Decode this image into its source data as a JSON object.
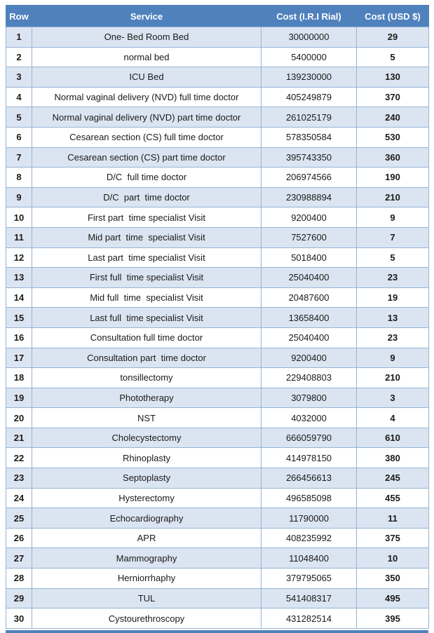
{
  "colors": {
    "header_bg": "#4F81BD",
    "header_text": "#FFFFFF",
    "row_alt_bg": "#DBE5F1",
    "border": "#95B3D7"
  },
  "table": {
    "headers": [
      "Row",
      "Service",
      "Cost (I.R.I Rial)",
      "Cost (USD $)"
    ],
    "column_keys": [
      "row-number",
      "service",
      "cost-rial",
      "cost-usd"
    ],
    "rows": [
      [
        "1",
        "One- Bed Room Bed",
        "30000000",
        "29"
      ],
      [
        "2",
        "normal bed",
        "5400000",
        "5"
      ],
      [
        "3",
        "ICU Bed",
        "139230000",
        "130"
      ],
      [
        "4",
        "Normal vaginal delivery (NVD) full time doctor",
        "405249879",
        "370"
      ],
      [
        "5",
        "Normal vaginal delivery (NVD) part time doctor",
        "261025179",
        "240"
      ],
      [
        "6",
        "Cesarean section (CS) full time doctor",
        "578350584",
        "530"
      ],
      [
        "7",
        "Cesarean section (CS) part time doctor",
        "395743350",
        "360"
      ],
      [
        "8",
        "D/C  full time doctor",
        "206974566",
        "190"
      ],
      [
        "9",
        "D/C  part  time doctor",
        "230988894",
        "210"
      ],
      [
        "10",
        "First part  time specialist Visit",
        "9200400",
        "9"
      ],
      [
        "11",
        "Mid part  time  specialist Visit",
        "7527600",
        "7"
      ],
      [
        "12",
        "Last part  time specialist Visit",
        "5018400",
        "5"
      ],
      [
        "13",
        "First full  time specialist Visit",
        "25040400",
        "23"
      ],
      [
        "14",
        "Mid full  time  specialist Visit",
        "20487600",
        "19"
      ],
      [
        "15",
        "Last full  time specialist Visit",
        "13658400",
        "13"
      ],
      [
        "16",
        "Consultation full time doctor",
        "25040400",
        "23"
      ],
      [
        "17",
        "Consultation part  time doctor",
        "9200400",
        "9"
      ],
      [
        "18",
        "tonsillectomy",
        "229408803",
        "210"
      ],
      [
        "19",
        "Phototherapy",
        "3079800",
        "3"
      ],
      [
        "20",
        "NST",
        "4032000",
        "4"
      ],
      [
        "21",
        "Cholecystectomy",
        "666059790",
        "610"
      ],
      [
        "22",
        "Rhinoplasty",
        "414978150",
        "380"
      ],
      [
        "23",
        "Septoplasty",
        "266456613",
        "245"
      ],
      [
        "24",
        "Hysterectomy",
        "496585098",
        "455"
      ],
      [
        "25",
        "Echocardiography",
        "11790000",
        "11"
      ],
      [
        "26",
        "APR",
        "408235992",
        "375"
      ],
      [
        "27",
        "Mammography",
        "11048400",
        "10"
      ],
      [
        "28",
        "Herniorrhaphy",
        "379795065",
        "350"
      ],
      [
        "29",
        "TUL",
        "541408317",
        "495"
      ],
      [
        "30",
        "Cystourethroscopy",
        "431282514",
        "395"
      ]
    ]
  }
}
